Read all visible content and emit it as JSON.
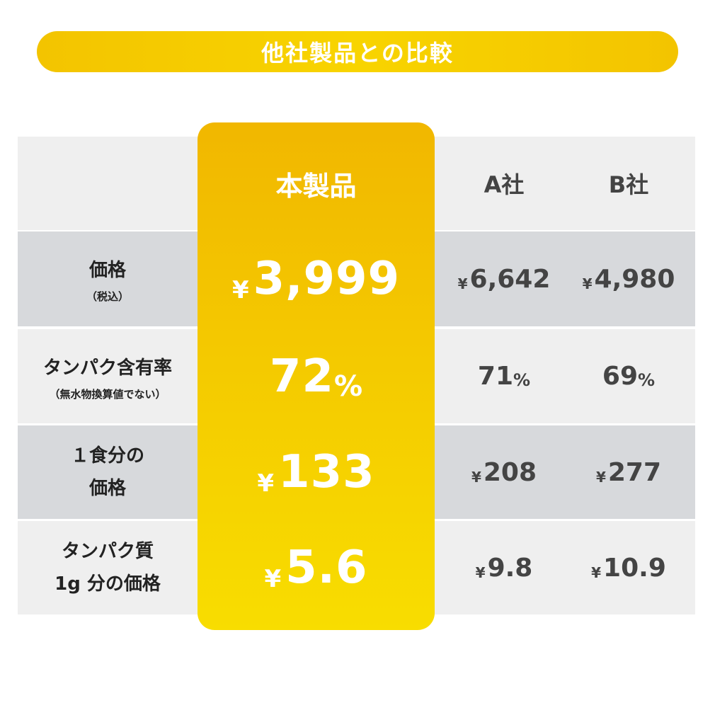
{
  "title": "他社製品との比較",
  "columns": {
    "ours": "本製品",
    "a": "A社",
    "b": "B社"
  },
  "currency_symbol": "¥",
  "percent_symbol": "%",
  "rows": [
    {
      "label": "価格",
      "sublabel": "（税込）",
      "ours": "3,999",
      "a": "6,642",
      "b": "4,980"
    },
    {
      "label": "タンパク含有率",
      "sublabel": "（無水物換算値でない）",
      "ours": "72",
      "a": "71",
      "b": "69"
    },
    {
      "label_lines": [
        "１食分の",
        "価格"
      ],
      "ours": "133",
      "a": "208",
      "b": "277"
    },
    {
      "label_lines": [
        "タンパク質",
        "1g 分の価格"
      ],
      "ours": "5.6",
      "a": "9.8",
      "b": "10.9"
    }
  ],
  "colors": {
    "accent_yellow": "#f4c900",
    "row_light": "#efefef",
    "row_dark": "#d7d9dc",
    "text_dark": "#222222",
    "text_gray": "#444444"
  }
}
